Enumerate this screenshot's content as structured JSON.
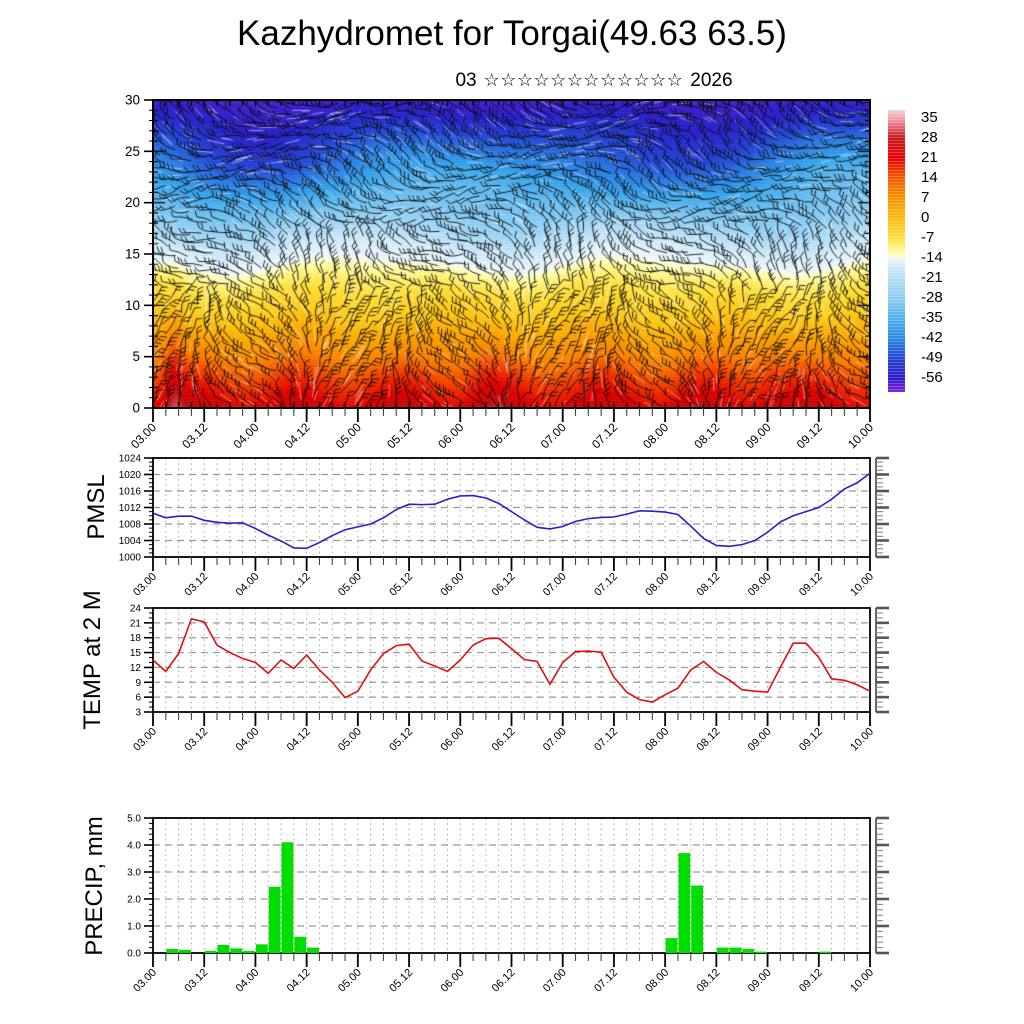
{
  "title": "Kazhydromet for Torgai(49.63 63.5)",
  "subtitle": {
    "month": "03",
    "stars": "☆☆☆☆☆☆☆☆☆☆☆☆",
    "year": "2026"
  },
  "timeline": {
    "labels_12h": [
      "03.00",
      "03.12",
      "04.00",
      "04.12",
      "05.00",
      "05.12",
      "06.00",
      "06.12",
      "07.00",
      "07.12",
      "08.00",
      "08.12",
      "09.00",
      "09.12",
      "10.00"
    ],
    "points_3h": [
      "03.00",
      "03.03",
      "03.06",
      "03.09",
      "03.12",
      "03.15",
      "03.18",
      "03.21",
      "04.00",
      "04.03",
      "04.06",
      "04.09",
      "04.12",
      "04.15",
      "04.18",
      "04.21",
      "05.00",
      "05.03",
      "05.06",
      "05.09",
      "05.12",
      "05.15",
      "05.18",
      "05.21",
      "06.00",
      "06.03",
      "06.06",
      "06.09",
      "06.12",
      "06.15",
      "06.18",
      "06.21",
      "07.00",
      "07.03",
      "07.06",
      "07.09",
      "07.12",
      "07.15",
      "07.18",
      "07.21",
      "08.00",
      "08.03",
      "08.06",
      "08.09",
      "08.12",
      "08.15",
      "08.18",
      "08.21",
      "09.00",
      "09.03",
      "09.06",
      "09.09",
      "09.12",
      "09.15",
      "09.18",
      "09.21",
      "10.00"
    ]
  },
  "colorbar": {
    "labels": [
      "35",
      "28",
      "21",
      "14",
      "7",
      "0",
      "-7",
      "-14",
      "-21",
      "-28",
      "-35",
      "-42",
      "-49",
      "-56"
    ],
    "band_colors": [
      "#f2a2ae",
      "#c81a20",
      "#e60000",
      "#f35800",
      "#f99000",
      "#fcba10",
      "#ffdd3a",
      "#fdf9a8",
      "#b5def5",
      "#8ccbf1",
      "#50b2ec",
      "#2b88e2",
      "#2347d2",
      "#2a1dc6"
    ],
    "above_color": "#f8ccd4",
    "below_color": "#8228d8",
    "gradient": [
      [
        "0%",
        "#f8ccd4"
      ],
      [
        "2.8%",
        "#f2a2ae"
      ],
      [
        "10%",
        "#c81a20"
      ],
      [
        "17%",
        "#e60000"
      ],
      [
        "24%",
        "#f35800"
      ],
      [
        "31%",
        "#f99000"
      ],
      [
        "38%",
        "#fcba10"
      ],
      [
        "45%",
        "#ffdd3a"
      ],
      [
        "48.5%",
        "#fff07a"
      ],
      [
        "51.5%",
        "#ffffc0"
      ],
      [
        "53.5%",
        "#e2f1fa"
      ],
      [
        "59.6%",
        "#b5def5"
      ],
      [
        "66.7%",
        "#8ccbf1"
      ],
      [
        "73.8%",
        "#50b2ec"
      ],
      [
        "80.9%",
        "#2b88e2"
      ],
      [
        "87.9%",
        "#2347d2"
      ],
      [
        "95%",
        "#2a1dc6"
      ],
      [
        "97.5%",
        "#5a20d0"
      ],
      [
        "100%",
        "#8228d8"
      ]
    ]
  },
  "chart_data": [
    {
      "type": "heatmap",
      "id": "temperature-height-cross-section",
      "x_start": "03.00",
      "x_end": "10.00",
      "x_step_hours": 3,
      "y_range": [
        0,
        30
      ],
      "y_ticks": [
        0,
        5,
        10,
        15,
        20,
        25,
        30
      ],
      "value_field": "temperature_C",
      "overlay": "wind-barbs",
      "temp_profile": [
        {
          "y": 0,
          "t": 24
        },
        {
          "y": 5,
          "t": 10
        },
        {
          "y": 10,
          "t": -3
        },
        {
          "y": 15,
          "t": -17
        },
        {
          "y": 20,
          "t": -31
        },
        {
          "y": 25,
          "t": -44
        },
        {
          "y": 30,
          "t": -58
        }
      ],
      "features": [
        "deep red warm surface column near 03.06 reaching y=12",
        "cold dark-blue wave band near y=22-26 dipping lowest near 04.06 and 07.21, lifting near 06.00 and 09.00",
        "pale yellow band undulating near y=14-16",
        "purple cap above y=28",
        "dense black wind barbs over whole section with white streak dashes"
      ]
    },
    {
      "type": "line",
      "id": "pmsl",
      "ylabel": "PMSL",
      "color": "#2323cc",
      "y_range": [
        1000,
        1024
      ],
      "y_ticks": [
        1000,
        1004,
        1008,
        1012,
        1016,
        1020,
        1024
      ],
      "values": [
        1010.6,
        1009.5,
        1009.9,
        1009.9,
        1008.9,
        1008.4,
        1008.2,
        1008.3,
        1006.9,
        1005.3,
        1003.9,
        1002.2,
        1002.1,
        1003.5,
        1005.2,
        1006.6,
        1007.3,
        1008.0,
        1009.5,
        1011.5,
        1012.8,
        1012.7,
        1012.8,
        1014.0,
        1014.8,
        1014.9,
        1014.3,
        1013.0,
        1011.0,
        1009.0,
        1007.2,
        1006.8,
        1007.4,
        1008.6,
        1009.3,
        1009.6,
        1009.7,
        1010.4,
        1011.2,
        1011.1,
        1010.9,
        1010.3,
        1007.5,
        1004.5,
        1002.8,
        1002.6,
        1003.0,
        1004.0,
        1006.0,
        1008.5,
        1010.0,
        1011.0,
        1012.0,
        1014.0,
        1016.5,
        1018.0,
        1020.3
      ]
    },
    {
      "type": "line",
      "id": "temp2m",
      "ylabel": "TEMP at 2 M",
      "color": "#e01010",
      "y_range": [
        3,
        24
      ],
      "y_ticks": [
        3,
        6,
        9,
        12,
        15,
        18,
        21,
        24
      ],
      "values": [
        13.5,
        11.2,
        14.8,
        21.8,
        21.2,
        16.5,
        15.0,
        13.8,
        13.0,
        10.8,
        13.5,
        11.8,
        14.5,
        11.5,
        9.0,
        5.9,
        7.2,
        11.5,
        14.8,
        16.4,
        16.7,
        13.3,
        12.3,
        11.2,
        13.5,
        16.5,
        17.8,
        17.9,
        15.8,
        13.6,
        13.2,
        8.6,
        13.0,
        15.2,
        15.3,
        15.1,
        10.0,
        7.0,
        5.5,
        5.0,
        6.5,
        7.8,
        11.5,
        13.2,
        11.0,
        9.5,
        7.5,
        7.2,
        7.0,
        12.0,
        16.9,
        16.9,
        14.0,
        9.7,
        9.4,
        8.5,
        7.2
      ]
    },
    {
      "type": "bar",
      "id": "precip",
      "ylabel": "PRECIP, mm",
      "color": "#00dd00",
      "y_range": [
        0,
        5
      ],
      "y_tick_labels": [
        "0.0",
        "1.0",
        "2.0",
        "3.0",
        "4.0",
        "5.0"
      ],
      "bin_hours": 3,
      "values": [
        0,
        0.15,
        0.12,
        0,
        0.08,
        0.3,
        0.17,
        0.08,
        0.32,
        2.45,
        4.1,
        0.6,
        0.2,
        0,
        0,
        0,
        0,
        0,
        0,
        0,
        0,
        0,
        0,
        0,
        0,
        0,
        0,
        0,
        0,
        0,
        0,
        0,
        0,
        0,
        0,
        0,
        0,
        0,
        0,
        0,
        0.55,
        3.7,
        2.5,
        0,
        0.2,
        0.2,
        0.15,
        0.05,
        0,
        0,
        0,
        0,
        0.05,
        0,
        0,
        0
      ]
    }
  ]
}
